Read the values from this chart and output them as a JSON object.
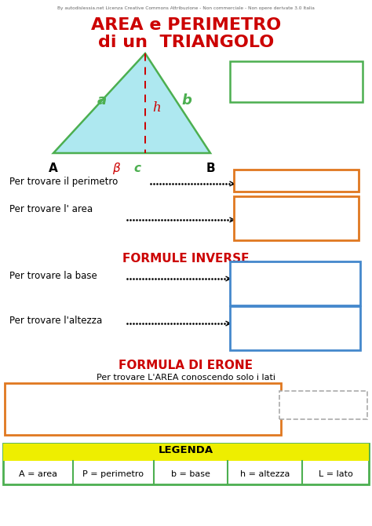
{
  "title_line1": "AREA e PERIMETRO",
  "title_line2": "di un  TRIANGOLO",
  "title_color": "#cc0000",
  "bg_color": "#ffffff",
  "watermark": "By autodislessia.net Licenza Creative Commons Attribuzione - Non commerciale - Non opere derivate 3.0 Italia",
  "triangle_fill": "#aee8f0",
  "triangle_stroke": "#4caf50",
  "dashed_line_color": "#cc0000",
  "label_a_color": "#4caf50",
  "label_b_color": "#4caf50",
  "label_h_color": "#cc0000",
  "label_A_color": "#000000",
  "label_beta_color": "#cc0000",
  "label_c_color": "#4caf50",
  "box_orange": "#e07820",
  "box_blue": "#4488cc",
  "box_green_border": "#4caf50",
  "formule_inverse_color": "#cc0000",
  "formula_erone_color": "#cc0000",
  "legenda_bg": "#eeee00",
  "legenda_border": "#4caf50",
  "text_color": "#000000"
}
